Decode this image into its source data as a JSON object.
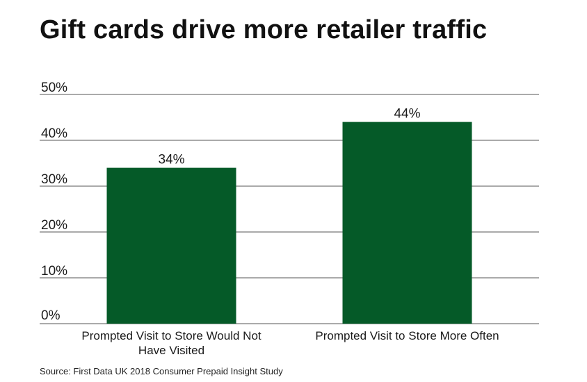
{
  "title": "Gift cards drive more retailer traffic",
  "source": "Source: First Data UK 2018 Consumer Prepaid Insight Study",
  "chart_data": {
    "type": "bar",
    "categories": [
      [
        "Prompted Visit to Store Would Not",
        "Have Visited"
      ],
      [
        "Prompted Visit to Store More Often"
      ]
    ],
    "values": [
      34,
      44
    ],
    "data_labels": [
      "34%",
      "44%"
    ],
    "ylim": [
      0,
      50
    ],
    "yticks": [
      0,
      10,
      20,
      30,
      40,
      50
    ],
    "ytick_labels": [
      "0%",
      "10%",
      "20%",
      "30%",
      "40%",
      "50%"
    ],
    "grid": true,
    "bar_color": "#055a28",
    "grid_color": "#555555"
  }
}
